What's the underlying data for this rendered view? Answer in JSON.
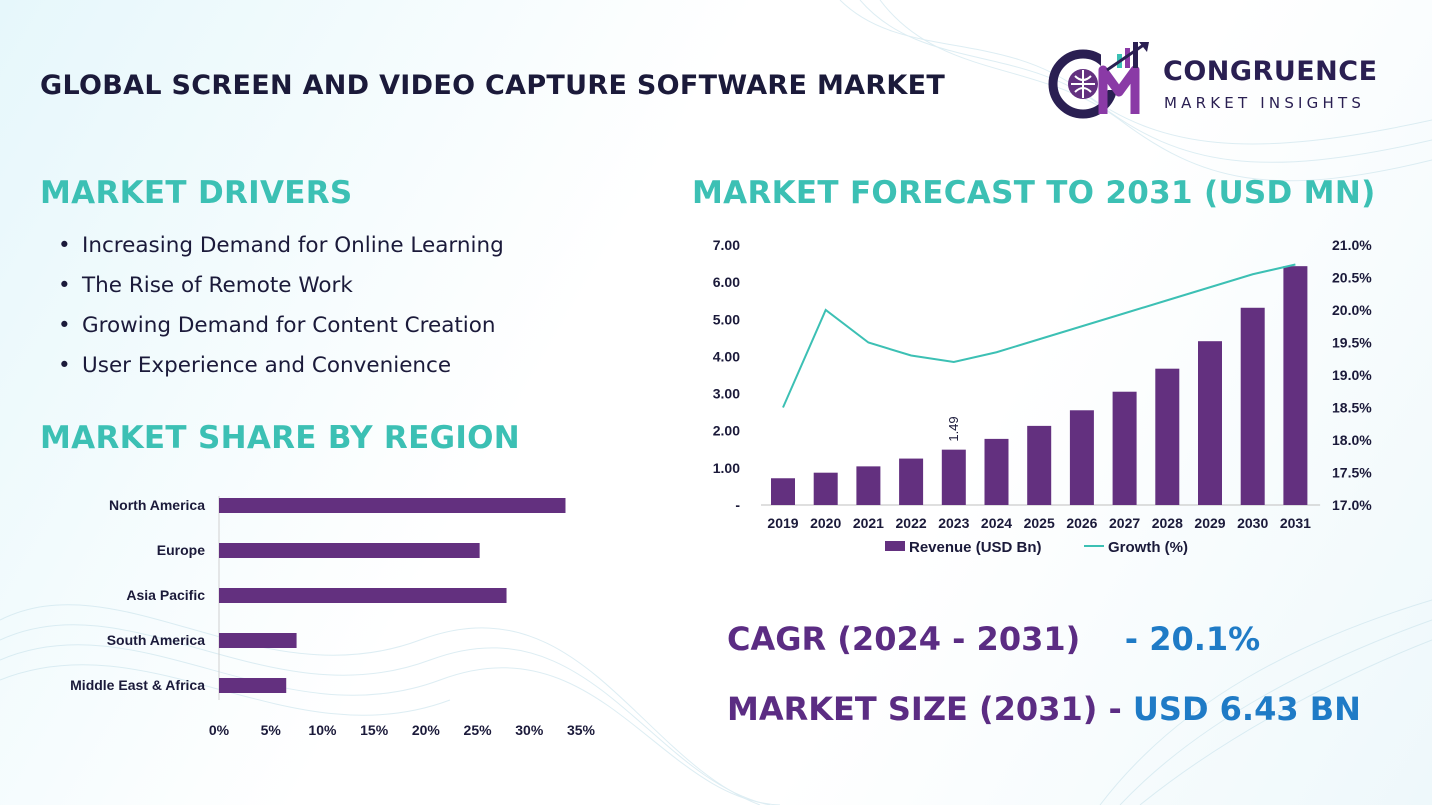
{
  "page": {
    "title": "GLOBAL SCREEN AND VIDEO CAPTURE SOFTWARE MARKET",
    "logo": {
      "name": "CONGRUENCE",
      "subtitle": "MARKET INSIGHTS",
      "monogram": "CM"
    }
  },
  "drivers": {
    "title": "MARKET DRIVERS",
    "items": [
      "Increasing Demand for Online Learning",
      "The Rise of Remote Work",
      "Growing Demand for Content Creation",
      "User Experience and Convenience"
    ]
  },
  "stats": {
    "cagr_label": "CAGR (2024 - 2031)",
    "cagr_value": "- 20.1%",
    "size_label": "MARKET SIZE (2031)",
    "size_value": "USD 6.43 BN"
  },
  "colors": {
    "bar": "#63307f",
    "line": "#3cc0b4",
    "accent": "#3cc0b4",
    "brand": "#2a1f52"
  },
  "chart_data": [
    {
      "type": "bar",
      "orientation": "horizontal",
      "title": "MARKET SHARE BY REGION",
      "categories": [
        "North America",
        "Europe",
        "Asia Pacific",
        "South America",
        "Middle East & Africa"
      ],
      "values": [
        33.5,
        25.2,
        27.8,
        7.5,
        6.5
      ],
      "xlim": [
        0,
        35
      ],
      "xticks": [
        "0%",
        "5%",
        "10%",
        "15%",
        "20%",
        "25%",
        "30%",
        "35%"
      ],
      "grid": false
    },
    {
      "type": "bar",
      "title": "MARKET FORECAST TO 2031 (USD MN)",
      "categories": [
        "2019",
        "2020",
        "2021",
        "2022",
        "2023",
        "2024",
        "2025",
        "2026",
        "2027",
        "2028",
        "2029",
        "2030",
        "2031"
      ],
      "series": [
        {
          "name": "Revenue (USD Bn)",
          "type": "bar",
          "axis": "left",
          "values": [
            0.72,
            0.87,
            1.04,
            1.25,
            1.49,
            1.78,
            2.13,
            2.55,
            3.05,
            3.67,
            4.41,
            5.31,
            6.43
          ]
        },
        {
          "name": "Growth (%)",
          "type": "line",
          "axis": "right",
          "values": [
            18.5,
            20.0,
            19.5,
            19.3,
            19.2,
            19.35,
            19.55,
            19.75,
            19.95,
            20.15,
            20.35,
            20.55,
            20.7
          ]
        }
      ],
      "data_labels": [
        {
          "index": 4,
          "text": "1.49"
        }
      ],
      "ylim_left": [
        0,
        7
      ],
      "yticks_left": [
        "-",
        "1.00",
        "2.00",
        "3.00",
        "4.00",
        "5.00",
        "6.00",
        "7.00"
      ],
      "ylim_right": [
        17,
        21
      ],
      "yticks_right": [
        "17.0%",
        "17.5%",
        "18.0%",
        "18.5%",
        "19.0%",
        "19.5%",
        "20.0%",
        "20.5%",
        "21.0%"
      ],
      "legend": "bottom",
      "grid": false
    }
  ]
}
